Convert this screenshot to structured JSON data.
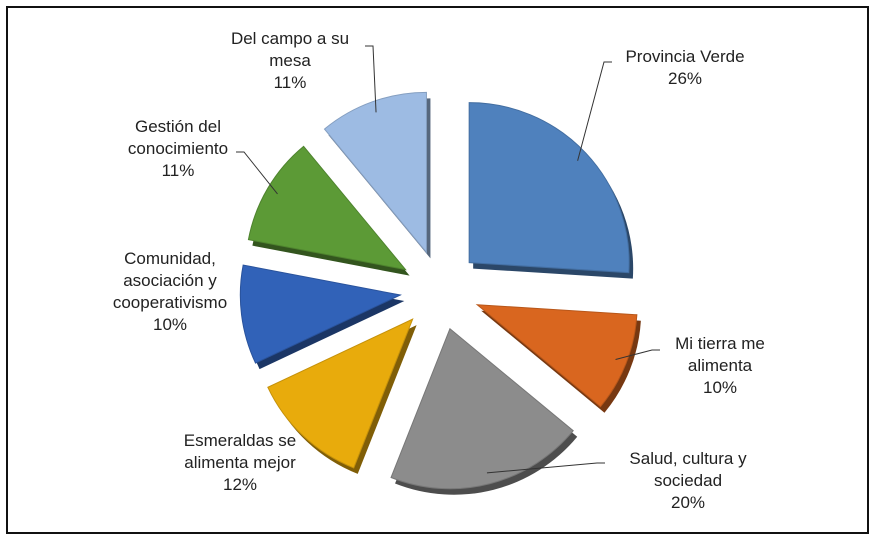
{
  "chart_data": {
    "type": "pie",
    "categories": [
      "Provincia Verde",
      "Mi tierra me alimenta",
      "Salud, cultura y sociedad",
      "Esmeraldas se alimenta mejor",
      "Comunidad, asociación y cooperativismo",
      "Gestión del conocimiento",
      "Del campo a su mesa"
    ],
    "values": [
      26,
      10,
      20,
      12,
      10,
      11,
      11
    ],
    "value_labels": [
      "26%",
      "10%",
      "20%",
      "12%",
      "10%",
      "11%",
      "11%"
    ],
    "colors": [
      "#4f81bd",
      "#d9661f",
      "#8c8c8c",
      "#e8ab0c",
      "#3162b8",
      "#5c9a36",
      "#9dbbe3"
    ]
  }
}
